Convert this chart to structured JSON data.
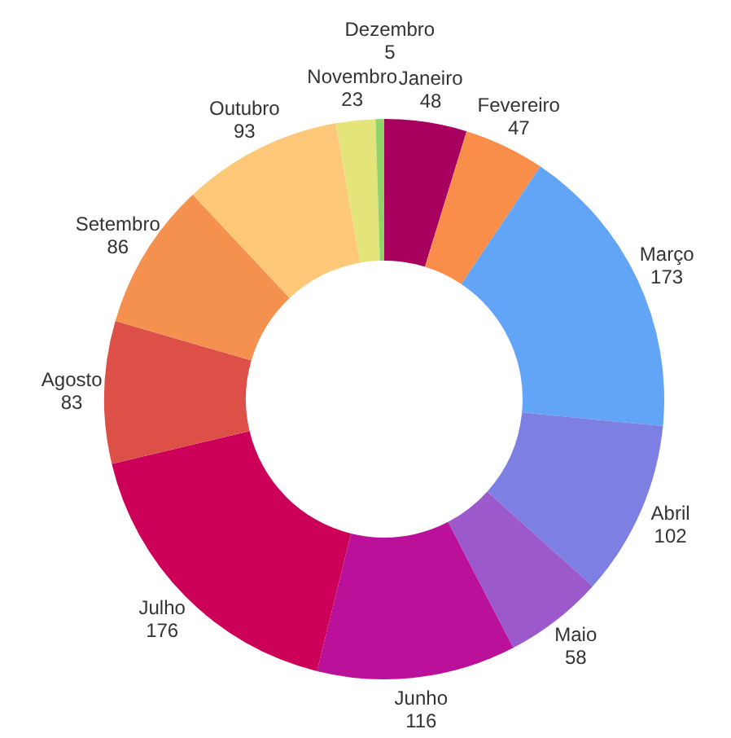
{
  "chart_data": {
    "type": "donut",
    "categories": [
      "Janeiro",
      "Fevereiro",
      "Março",
      "Abril",
      "Maio",
      "Junho",
      "Julho",
      "Agosto",
      "Setembro",
      "Outubro",
      "Novembro",
      "Dezembro"
    ],
    "values": [
      48,
      47,
      173,
      102,
      58,
      116,
      176,
      83,
      86,
      93,
      23,
      5
    ],
    "colors": [
      "#a8005e",
      "#f98e4a",
      "#62a4f6",
      "#7e7fe3",
      "#9b59cc",
      "#bb109a",
      "#cc0058",
      "#dc5047",
      "#f5914f",
      "#fdc978",
      "#e3e57a",
      "#8fd36a"
    ],
    "data_labels": true
  }
}
